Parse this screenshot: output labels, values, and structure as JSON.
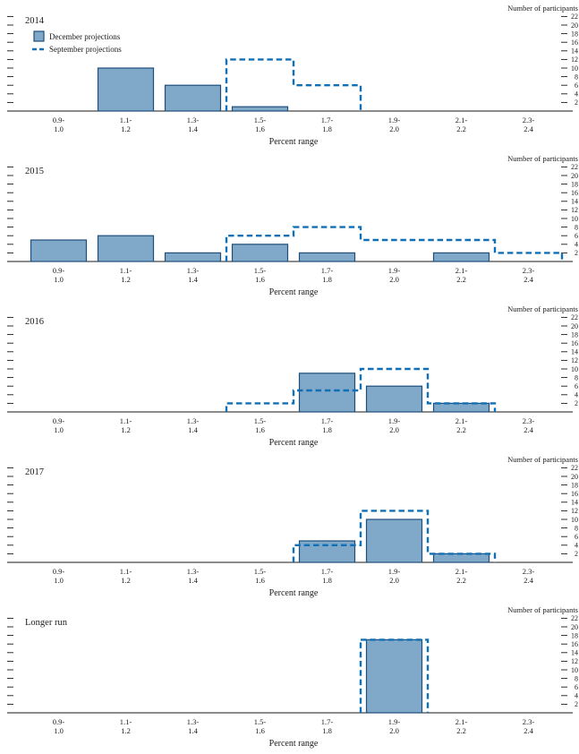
{
  "figure": {
    "y_axis_title": "Number of participants",
    "x_axis_title": "Percent range",
    "y_ticks": [
      22,
      20,
      18,
      16,
      14,
      12,
      10,
      8,
      6,
      4,
      2
    ],
    "bin_label_lines": [
      [
        "0.9-",
        "1.0"
      ],
      [
        "1.1-",
        "1.2"
      ],
      [
        "1.3-",
        "1.4"
      ],
      [
        "1.5-",
        "1.6"
      ],
      [
        "1.7-",
        "1.8"
      ],
      [
        "1.9-",
        "2.0"
      ],
      [
        "2.1-",
        "2.2"
      ],
      [
        "2.3-",
        "2.4"
      ]
    ],
    "legend": {
      "december_label": "December projections",
      "september_label": "September projections"
    },
    "colors": {
      "bar_fill": "#7FA8C9",
      "bar_edge": "#1F4E79",
      "dashed": "#1170B5",
      "axis": "#1a1a1a",
      "text": "#1a1a1a"
    }
  },
  "chart_data": [
    {
      "type": "bar",
      "title": "2014",
      "categories": [
        "0.9-1.0",
        "1.1-1.2",
        "1.3-1.4",
        "1.5-1.6",
        "1.7-1.8",
        "1.9-2.0",
        "2.1-2.2",
        "2.3-2.4"
      ],
      "series": [
        {
          "name": "December projections",
          "style": "filled-bar",
          "values": [
            0,
            10,
            6,
            1,
            0,
            0,
            0,
            0
          ]
        },
        {
          "name": "September projections",
          "style": "dashed-outline",
          "values": [
            0,
            0,
            0,
            12,
            6,
            0,
            0,
            0
          ]
        }
      ],
      "xlabel": "Percent range",
      "ylabel": "Number of participants",
      "ylim": [
        0,
        22
      ],
      "legend_position": "top-left",
      "grid": false
    },
    {
      "type": "bar",
      "title": "2015",
      "categories": [
        "0.9-1.0",
        "1.1-1.2",
        "1.3-1.4",
        "1.5-1.6",
        "1.7-1.8",
        "1.9-2.0",
        "2.1-2.2",
        "2.3-2.4"
      ],
      "series": [
        {
          "name": "December projections",
          "style": "filled-bar",
          "values": [
            5,
            6,
            2,
            4,
            2,
            0,
            2,
            0
          ]
        },
        {
          "name": "September projections",
          "style": "dashed-outline",
          "values": [
            0,
            0,
            0,
            6,
            8,
            5,
            5,
            2
          ]
        }
      ],
      "xlabel": "Percent range",
      "ylabel": "Number of participants",
      "ylim": [
        0,
        22
      ],
      "legend_position": "none",
      "grid": false
    },
    {
      "type": "bar",
      "title": "2016",
      "categories": [
        "0.9-1.0",
        "1.1-1.2",
        "1.3-1.4",
        "1.5-1.6",
        "1.7-1.8",
        "1.9-2.0",
        "2.1-2.2",
        "2.3-2.4"
      ],
      "series": [
        {
          "name": "December projections",
          "style": "filled-bar",
          "values": [
            0,
            0,
            0,
            0,
            9,
            6,
            2,
            0
          ]
        },
        {
          "name": "September projections",
          "style": "dashed-outline",
          "values": [
            0,
            0,
            0,
            2,
            5,
            10,
            2,
            0
          ]
        }
      ],
      "xlabel": "Percent range",
      "ylabel": "Number of participants",
      "ylim": [
        0,
        22
      ],
      "legend_position": "none",
      "grid": false
    },
    {
      "type": "bar",
      "title": "2017",
      "categories": [
        "0.9-1.0",
        "1.1-1.2",
        "1.3-1.4",
        "1.5-1.6",
        "1.7-1.8",
        "1.9-2.0",
        "2.1-2.2",
        "2.3-2.4"
      ],
      "series": [
        {
          "name": "December projections",
          "style": "filled-bar",
          "values": [
            0,
            0,
            0,
            0,
            5,
            10,
            2,
            0
          ]
        },
        {
          "name": "September projections",
          "style": "dashed-outline",
          "values": [
            0,
            0,
            0,
            0,
            4,
            12,
            2,
            0
          ]
        }
      ],
      "xlabel": "Percent range",
      "ylabel": "Number of participants",
      "ylim": [
        0,
        22
      ],
      "legend_position": "none",
      "grid": false
    },
    {
      "type": "bar",
      "title": "Longer run",
      "categories": [
        "0.9-1.0",
        "1.1-1.2",
        "1.3-1.4",
        "1.5-1.6",
        "1.7-1.8",
        "1.9-2.0",
        "2.1-2.2",
        "2.3-2.4"
      ],
      "series": [
        {
          "name": "December projections",
          "style": "filled-bar",
          "values": [
            0,
            0,
            0,
            0,
            0,
            17,
            0,
            0
          ]
        },
        {
          "name": "September projections",
          "style": "dashed-outline",
          "values": [
            0,
            0,
            0,
            0,
            0,
            17,
            0,
            0
          ]
        }
      ],
      "xlabel": "Percent range",
      "ylabel": "Number of participants",
      "ylim": [
        0,
        22
      ],
      "legend_position": "none",
      "grid": false
    }
  ]
}
